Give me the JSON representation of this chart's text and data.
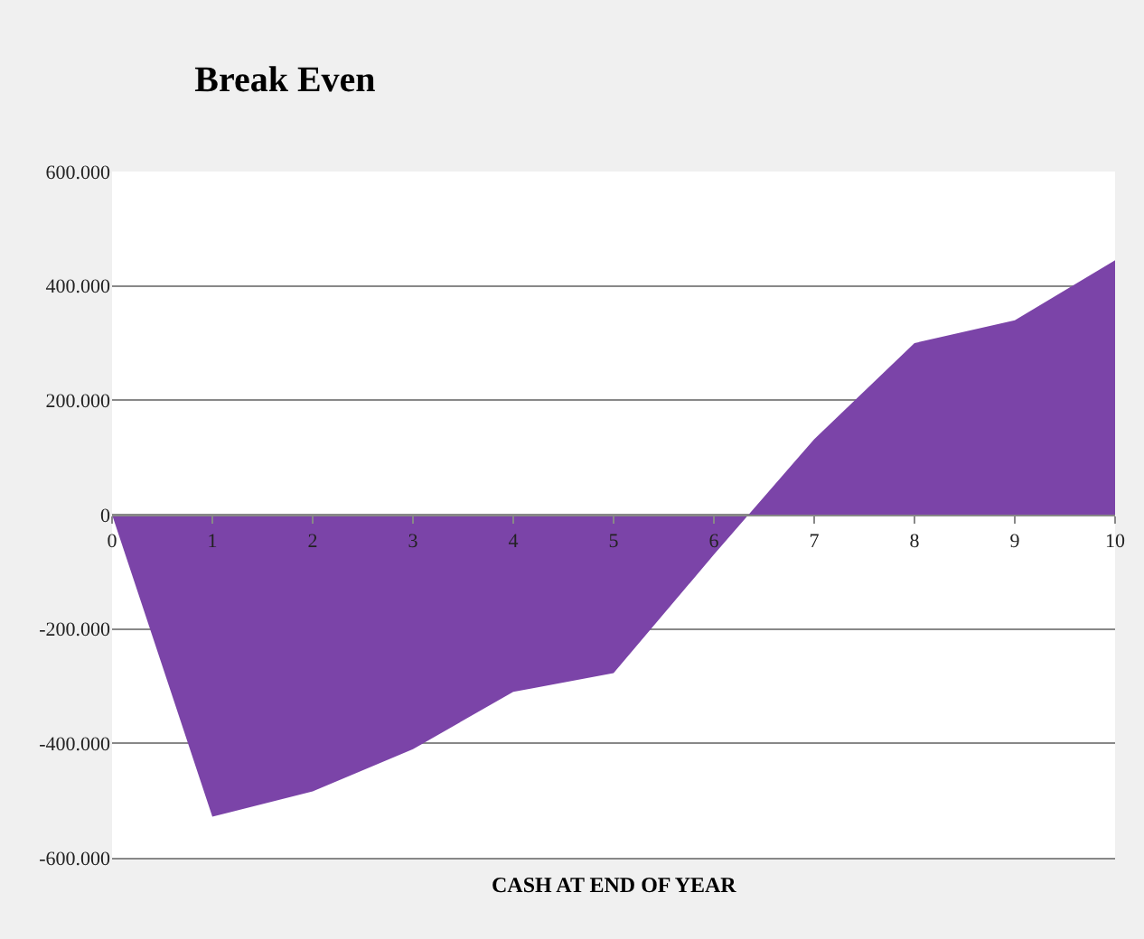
{
  "chart_data": {
    "type": "area",
    "title": "Break Even",
    "xlabel": "CASH AT END OF YEAR",
    "x": [
      0,
      1,
      2,
      3,
      4,
      5,
      6,
      7,
      8,
      9,
      10
    ],
    "series": [
      {
        "color": "#7b44a8",
        "values": [
          0,
          -528000,
          -484000,
          -410000,
          -310000,
          -277000,
          -70000,
          132000,
          300000,
          340000,
          445000
        ]
      }
    ],
    "xlim": [
      0,
      10
    ],
    "xticks": [
      0,
      1,
      2,
      3,
      4,
      5,
      6,
      7,
      8,
      9,
      10
    ],
    "ylim": [
      -600000,
      600000
    ],
    "yticks": [
      {
        "value": -600000,
        "label": "-600.000"
      },
      {
        "value": -400000,
        "label": "-400.000"
      },
      {
        "value": -200000,
        "label": "-200.000"
      },
      {
        "value": 0,
        "label": "0"
      },
      {
        "value": 200000,
        "label": "200.000"
      },
      {
        "value": 400000,
        "label": "400.000"
      },
      {
        "value": 600000,
        "label": "600.000"
      }
    ],
    "grid": "y"
  }
}
